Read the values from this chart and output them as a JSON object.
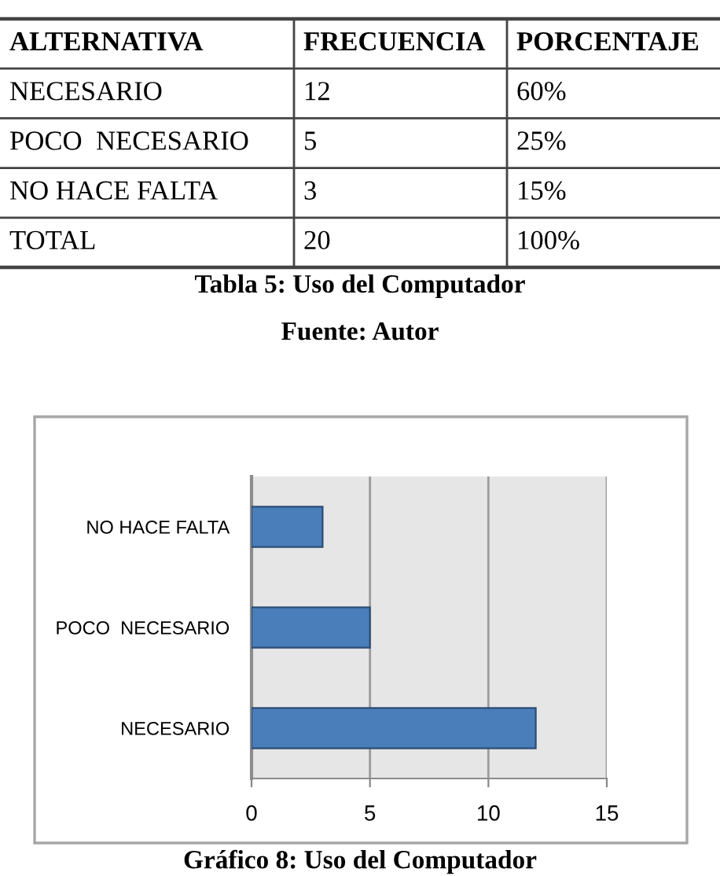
{
  "chart_data": [
    {
      "type": "other",
      "title": "Tabla 5: Uso del Computador",
      "annotations": [
        "Fuente: Autor"
      ],
      "xlabel": "ALTERNATIVA",
      "categories": [
        "NECESARIO",
        "POCO  NECESARIO",
        "NO HACE FALTA",
        "TOTAL"
      ],
      "series": [
        {
          "name": "FRECUENCIA",
          "values": [
            12,
            5,
            3,
            20
          ]
        },
        {
          "name": "PORCENTAJE",
          "values": [
            60,
            25,
            15,
            100
          ],
          "value_labels": [
            "60%",
            "25%",
            "15%",
            "100%"
          ]
        }
      ],
      "data_labels": true
    },
    {
      "type": "bar",
      "orientation": "horizontal",
      "title": "Gráfico 8: Uso del Computador",
      "categories": [
        "NO HACE FALTA",
        "POCO  NECESARIO",
        "NECESARIO"
      ],
      "values": [
        3,
        5,
        12
      ],
      "color": "#4a7ebb",
      "xlim": [
        0,
        15
      ],
      "xticks": [
        0,
        5,
        10,
        15
      ],
      "grid": "x"
    }
  ]
}
